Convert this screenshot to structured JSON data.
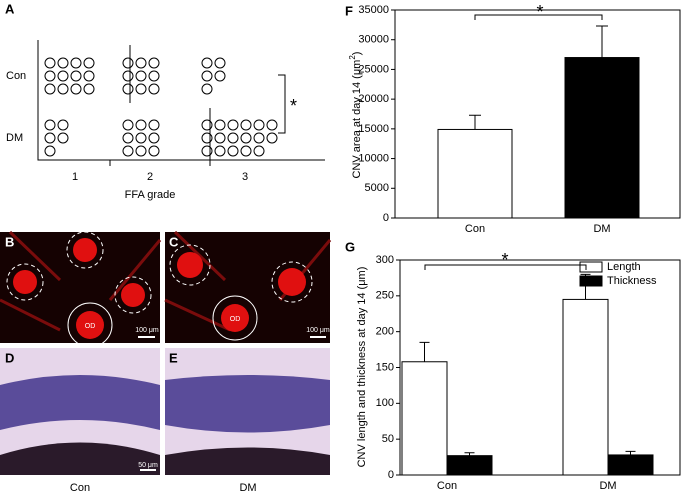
{
  "chart_data": [
    {
      "panel": "A",
      "type": "dot",
      "categories": [
        "1",
        "2",
        "3"
      ],
      "series": [
        {
          "name": "Con",
          "values": [
            12,
            9,
            5
          ]
        },
        {
          "name": "DM",
          "values": [
            5,
            9,
            17
          ]
        }
      ],
      "xlabel": "FFA grade",
      "annotation": "*"
    },
    {
      "panel": "F",
      "type": "bar",
      "categories": [
        "Con",
        "DM"
      ],
      "values": [
        14900,
        27000
      ],
      "errors": [
        2400,
        5300
      ],
      "colors": [
        "#ffffff",
        "#000000"
      ],
      "ylim": [
        0,
        35000
      ],
      "yticks": [
        0,
        5000,
        10000,
        15000,
        20000,
        25000,
        30000,
        35000
      ],
      "ylabel": "CNV area at day 14 (μm",
      "ylabel_sup": "2",
      "ylabel_end": ")",
      "annotation": "*"
    },
    {
      "panel": "G",
      "type": "groupedbar",
      "categories": [
        "Con",
        "DM"
      ],
      "series": [
        {
          "name": "Length",
          "color": "#ffffff",
          "values": [
            158,
            245
          ],
          "errors": [
            27,
            35
          ]
        },
        {
          "name": "Thickness",
          "color": "#000000",
          "values": [
            27,
            28
          ],
          "errors": [
            4,
            5
          ]
        }
      ],
      "ylim": [
        0,
        300
      ],
      "yticks": [
        0,
        50,
        100,
        150,
        200,
        250,
        300
      ],
      "ylabel": "CNV length and thickness at day 14 (μm)",
      "legend": "upper right",
      "annotation": "*"
    }
  ],
  "panels": [
    {
      "label": "B",
      "scale": "100 μm",
      "od": "OD"
    },
    {
      "label": "C",
      "scale": "100 μm",
      "od": "OD"
    },
    {
      "label": "D",
      "scale": "50 μm"
    },
    {
      "label": "E",
      "caption": "DM"
    }
  ],
  "captions": [
    "Con",
    "DM"
  ]
}
